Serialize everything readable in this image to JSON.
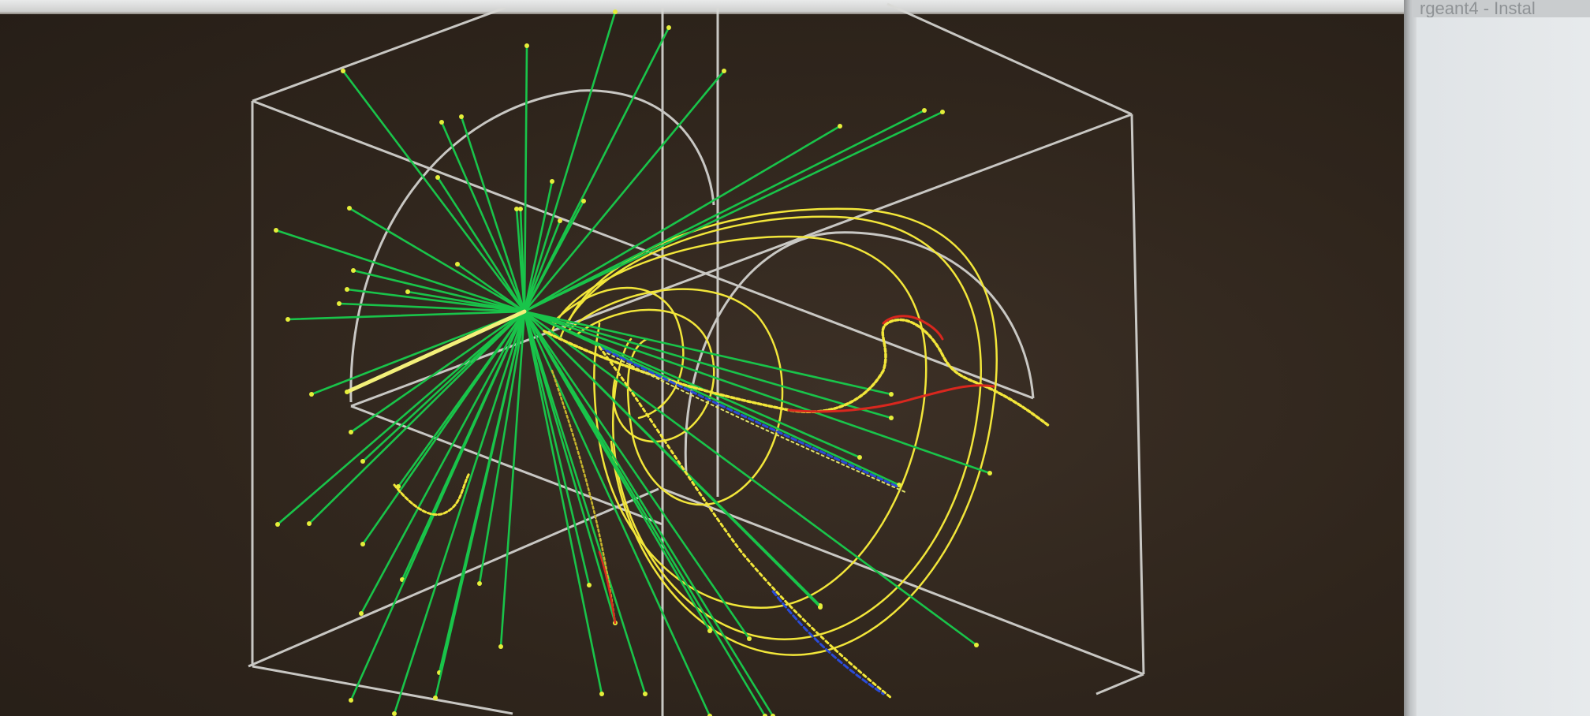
{
  "screen": {
    "background_color": "#2f251c",
    "window_caption": "rgeant4 - Instal"
  },
  "colors": {
    "frame": "#d9d9d6",
    "track_green": "#19c44a",
    "track_yellow": "#f2e63a",
    "track_red": "#d9271e",
    "track_blue": "#2a4bd8"
  }
}
